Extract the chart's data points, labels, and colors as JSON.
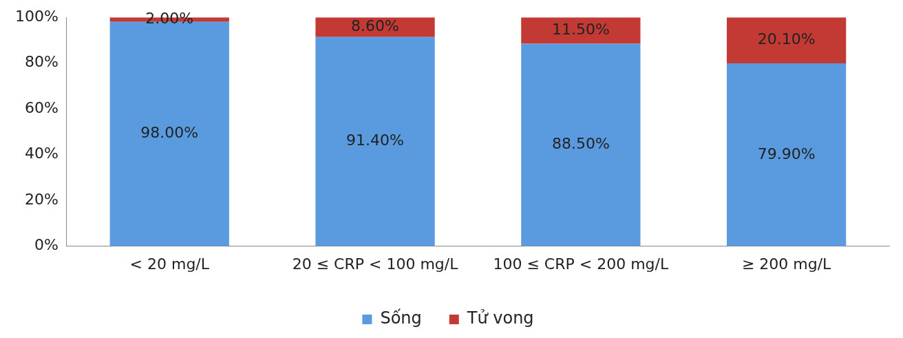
{
  "chart_data": {
    "type": "bar",
    "stacked": true,
    "categories": [
      "< 20 mg/L",
      "20 ≤ CRP < 100 mg/L",
      "100 ≤ CRP < 200 mg/L",
      "≥ 200 mg/L"
    ],
    "series": [
      {
        "name": "Sống",
        "color": "#5a9be0",
        "values": [
          98,
          91.4,
          88.5,
          79.9
        ],
        "value_labels": [
          "98.00%",
          "91.40%",
          "88.50%",
          "79.90%"
        ]
      },
      {
        "name": "Tử vong",
        "color": "#c33a35",
        "values": [
          2,
          8.6,
          11.5,
          20.1
        ],
        "value_labels": [
          "2.00%",
          "8.60%",
          "11.50%",
          "20.10%"
        ]
      }
    ],
    "ylim": [
      0,
      100
    ],
    "yticks": [
      {
        "value": 0,
        "label": "0%"
      },
      {
        "value": 20,
        "label": "20%"
      },
      {
        "value": 40,
        "label": "40%"
      },
      {
        "value": 60,
        "label": "60%"
      },
      {
        "value": 80,
        "label": "80%"
      },
      {
        "value": 100,
        "label": "100%"
      }
    ],
    "grid": false,
    "legend": "bottom"
  }
}
